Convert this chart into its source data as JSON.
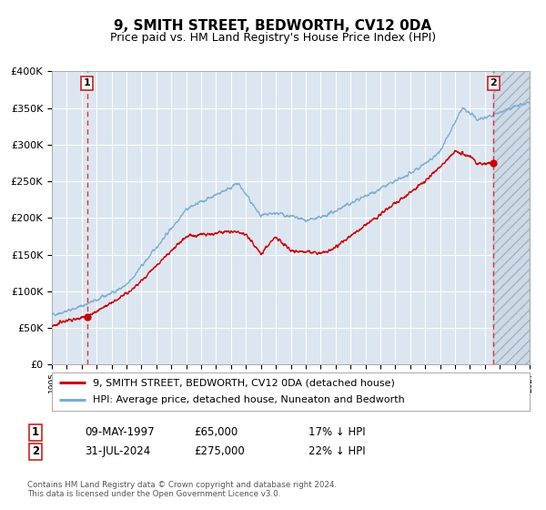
{
  "title": "9, SMITH STREET, BEDWORTH, CV12 0DA",
  "subtitle": "Price paid vs. HM Land Registry's House Price Index (HPI)",
  "title_fontsize": 11,
  "subtitle_fontsize": 9,
  "background_color": "#ffffff",
  "plot_bg_color": "#dce6f0",
  "grid_color": "#ffffff",
  "hpi_line_color": "#7aadd4",
  "price_line_color": "#cc0000",
  "marker_color": "#cc0000",
  "vline_color": "#cc4444",
  "x_start_year": 1995,
  "x_end_year": 2027,
  "ylim": [
    0,
    400000
  ],
  "yticks": [
    0,
    50000,
    100000,
    150000,
    200000,
    250000,
    300000,
    350000,
    400000
  ],
  "ytick_labels": [
    "£0",
    "£50K",
    "£100K",
    "£150K",
    "£200K",
    "£250K",
    "£300K",
    "£350K",
    "£400K"
  ],
  "transaction1_year": 1997.36,
  "transaction1_price": 65000,
  "transaction2_year": 2024.58,
  "transaction2_price": 275000,
  "legend_entry1": "9, SMITH STREET, BEDWORTH, CV12 0DA (detached house)",
  "legend_entry2": "HPI: Average price, detached house, Nuneaton and Bedworth",
  "annot1_label": "1",
  "annot2_label": "2",
  "table_row1": [
    "1",
    "09-MAY-1997",
    "£65,000",
    "17% ↓ HPI"
  ],
  "table_row2": [
    "2",
    "31-JUL-2024",
    "£275,000",
    "22% ↓ HPI"
  ],
  "footer": "Contains HM Land Registry data © Crown copyright and database right 2024.\nThis data is licensed under the Open Government Licence v3.0."
}
